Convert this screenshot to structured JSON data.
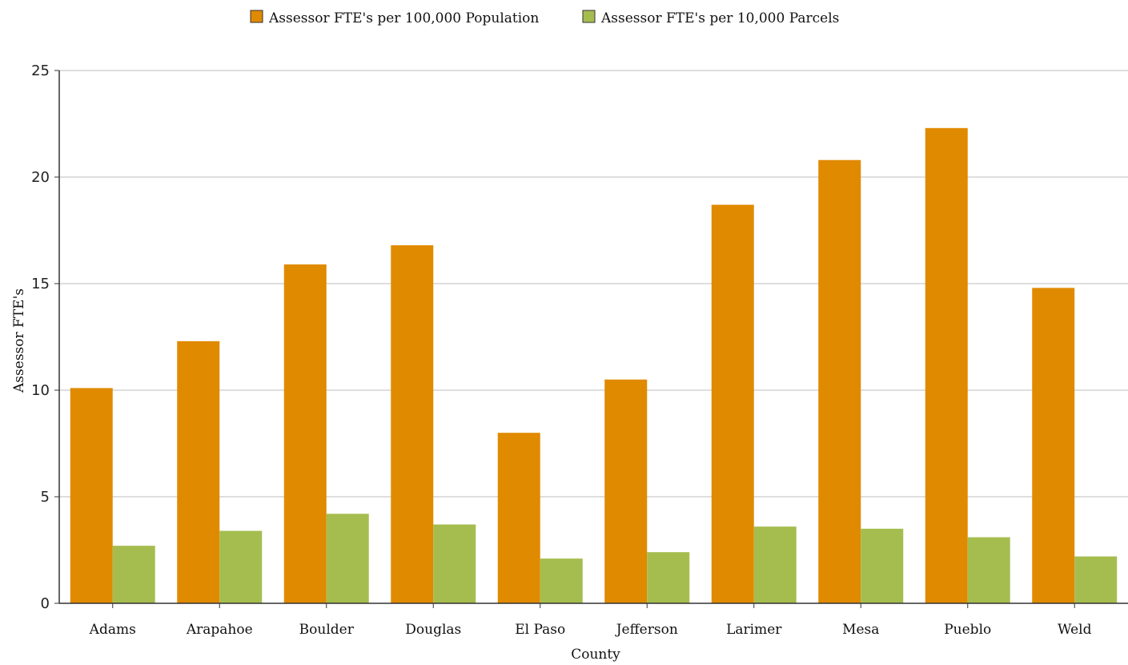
{
  "chart_data": {
    "type": "bar",
    "title": "",
    "xlabel": "County",
    "ylabel": "Assessor FTE's",
    "ylim": [
      0,
      25
    ],
    "yticks": [
      0,
      5,
      10,
      15,
      20,
      25
    ],
    "grid": "horizontal",
    "legend_position": "top",
    "categories": [
      "Adams",
      "Arapahoe",
      "Boulder",
      "Douglas",
      "El Paso",
      "Jefferson",
      "Larimer",
      "Mesa",
      "Pueblo",
      "Weld"
    ],
    "series": [
      {
        "name": "Assessor FTE's per 100,000 Population",
        "color": "#E08A00",
        "values": [
          10.1,
          12.3,
          15.9,
          16.8,
          8.0,
          10.5,
          18.7,
          20.8,
          22.3,
          14.8
        ]
      },
      {
        "name": "Assessor FTE's per 10,000 Parcels",
        "color": "#A5BD4F",
        "values": [
          2.7,
          3.4,
          4.2,
          3.7,
          2.1,
          2.4,
          3.6,
          3.5,
          3.1,
          2.2
        ]
      }
    ]
  }
}
